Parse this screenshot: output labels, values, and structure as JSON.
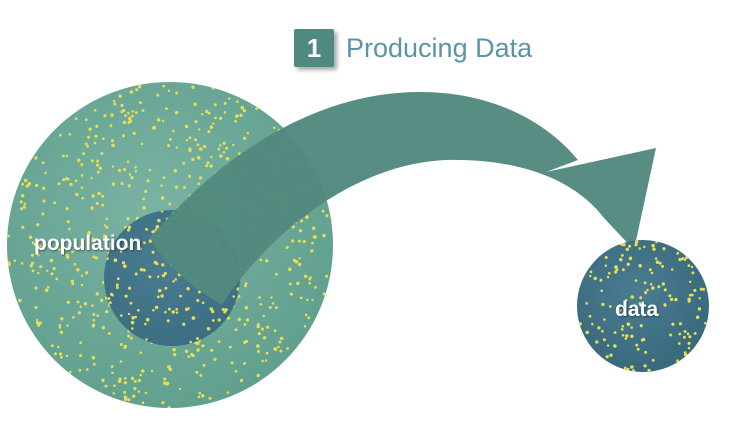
{
  "step": {
    "number": "1",
    "title": "Producing Data"
  },
  "labels": {
    "population": "population",
    "data": "data"
  },
  "colors": {
    "population_fill": "#6aa898",
    "sample_fill": "#3f6f8a",
    "arrow_fill": "#52897e",
    "data_fill": "#3f6f8a",
    "dot": "#e8de55",
    "badge": "#4f8a80",
    "title_text": "#5b93a7"
  }
}
